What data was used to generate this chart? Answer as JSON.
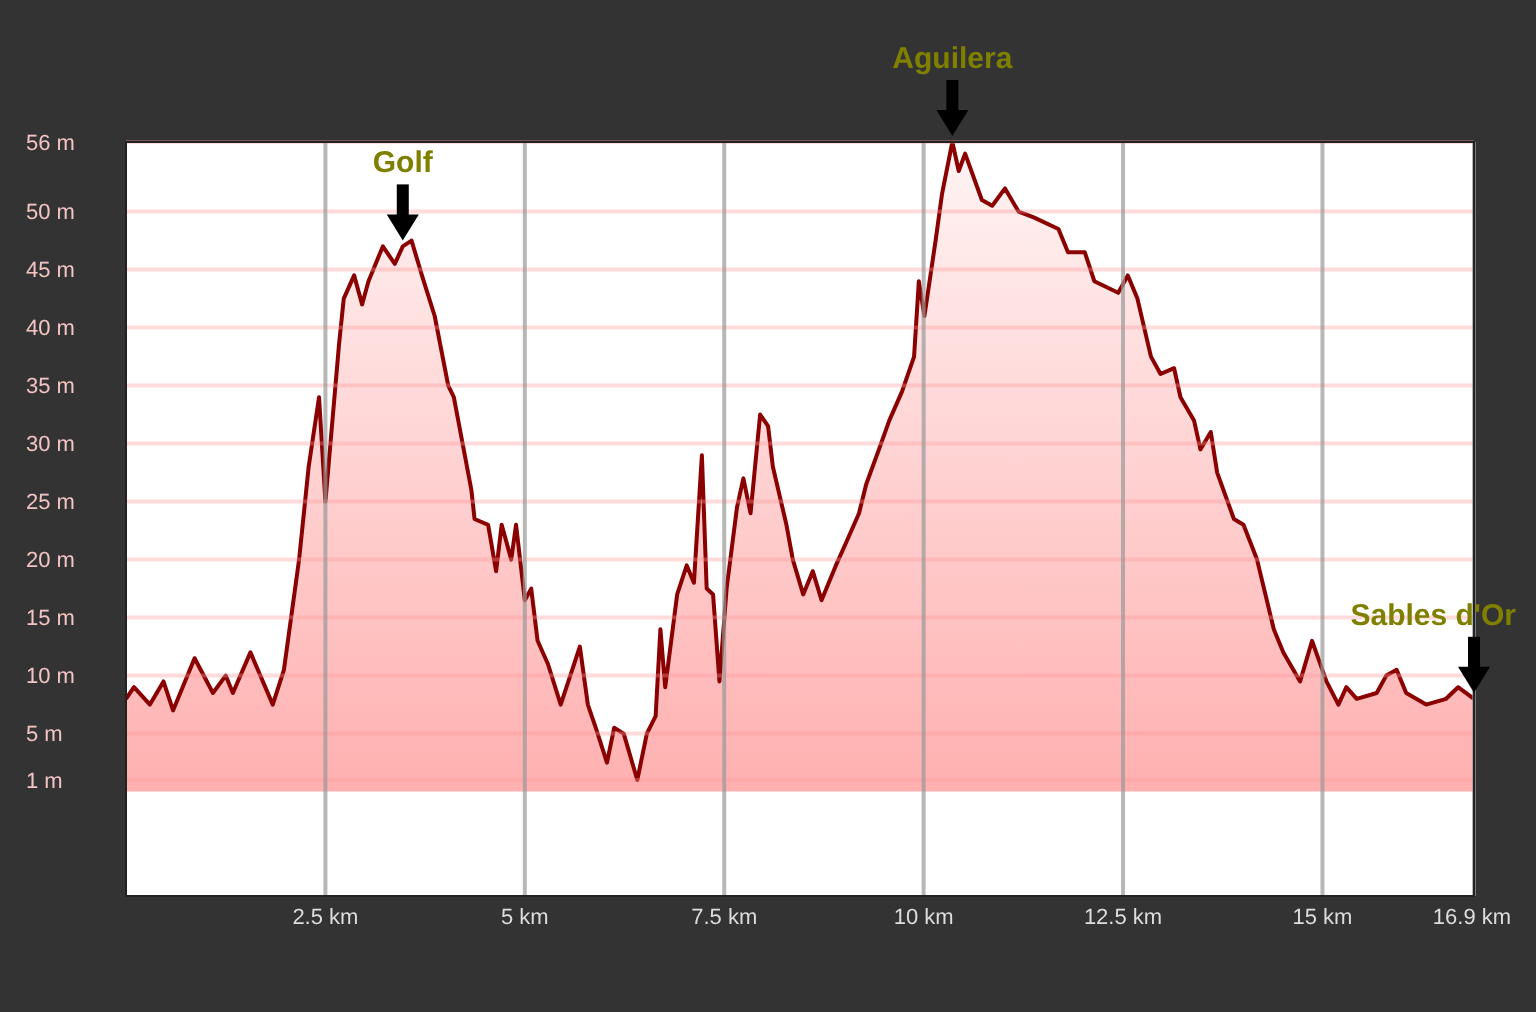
{
  "chart_data": {
    "type": "area",
    "x": [
      0,
      0.1,
      0.3,
      0.47,
      0.59,
      0.86,
      1.09,
      1.25,
      1.34,
      1.56,
      1.84,
      1.98,
      2.17,
      2.29,
      2.42,
      2.5,
      2.67,
      2.73,
      2.86,
      2.96,
      3.04,
      3.22,
      3.37,
      3.47,
      3.58,
      3.71,
      3.87,
      4.04,
      4.11,
      4.33,
      4.37,
      4.54,
      4.64,
      4.71,
      4.83,
      4.89,
      5.0,
      5.08,
      5.16,
      5.29,
      5.45,
      5.69,
      5.79,
      5.89,
      6.03,
      6.12,
      6.24,
      6.41,
      6.53,
      6.64,
      6.7,
      6.76,
      6.91,
      7.03,
      7.12,
      7.22,
      7.28,
      7.36,
      7.44,
      7.53,
      7.66,
      7.74,
      7.83,
      7.95,
      8.05,
      8.11,
      8.28,
      8.36,
      8.49,
      8.61,
      8.72,
      8.9,
      9.03,
      9.19,
      9.28,
      9.44,
      9.57,
      9.73,
      9.88,
      9.94,
      10.01,
      10.15,
      10.23,
      10.36,
      10.44,
      10.52,
      10.73,
      10.86,
      11.02,
      11.19,
      11.38,
      11.69,
      11.81,
      12.02,
      12.14,
      12.44,
      12.56,
      12.68,
      12.85,
      12.97,
      13.14,
      13.22,
      13.39,
      13.47,
      13.6,
      13.68,
      13.89,
      14.01,
      14.18,
      14.39,
      14.51,
      14.72,
      14.87,
      15.05,
      15.2,
      15.3,
      15.43,
      15.68,
      15.8,
      15.93,
      16.05,
      16.3,
      16.55,
      16.7,
      16.9
    ],
    "series": [
      {
        "color": "#8b0000",
        "values": [
          8,
          9,
          7.5,
          9.5,
          7,
          11.5,
          8.5,
          10,
          8.5,
          12,
          7.5,
          10.5,
          20,
          28,
          34,
          25,
          38.5,
          42.5,
          44.5,
          42,
          44,
          47,
          45.5,
          47,
          47.5,
          44.5,
          41,
          35,
          34,
          26,
          23.5,
          23,
          19,
          23,
          20,
          23,
          16.5,
          17.5,
          13,
          11,
          7.5,
          12.5,
          7.5,
          5.5,
          2.5,
          5.5,
          5,
          1,
          5,
          6.5,
          14,
          9,
          17,
          19.5,
          18,
          29,
          17.5,
          17,
          9.5,
          17.5,
          24.5,
          27,
          24,
          32.5,
          31.5,
          28,
          23,
          20,
          17,
          19,
          16.5,
          19.5,
          21.5,
          24,
          26.5,
          29.5,
          32,
          34.5,
          37.5,
          44,
          41,
          47.5,
          51.5,
          56,
          53.5,
          55,
          51,
          50.5,
          52,
          50,
          49.5,
          48.5,
          46.5,
          46.5,
          44,
          43,
          44.5,
          42.5,
          37.5,
          36,
          36.5,
          34,
          32,
          29.5,
          31,
          27.5,
          23.5,
          23,
          20,
          14,
          12,
          9.5,
          13,
          9.5,
          7.5,
          9,
          8,
          8.5,
          10,
          10.5,
          8.5,
          7.5,
          8,
          9,
          8
        ]
      }
    ],
    "xlim": [
      0,
      16.9
    ],
    "ylim": [
      -9,
      56
    ],
    "xticks": [
      {
        "value": 2.5,
        "label": "2.5 km"
      },
      {
        "value": 5,
        "label": "5 km"
      },
      {
        "value": 7.5,
        "label": "7.5 km"
      },
      {
        "value": 10,
        "label": "10 km"
      },
      {
        "value": 12.5,
        "label": "12.5 km"
      },
      {
        "value": 15,
        "label": "15 km"
      },
      {
        "value": 16.9,
        "label": "16.9 km"
      }
    ],
    "yticks": [
      {
        "value": 1,
        "label": "1 m"
      },
      {
        "value": 5,
        "label": "5 m"
      },
      {
        "value": 10,
        "label": "10 m"
      },
      {
        "value": 15,
        "label": "15 m"
      },
      {
        "value": 20,
        "label": "20 m"
      },
      {
        "value": 25,
        "label": "25 m"
      },
      {
        "value": 30,
        "label": "30 m"
      },
      {
        "value": 35,
        "label": "35 m"
      },
      {
        "value": 40,
        "label": "40 m"
      },
      {
        "value": 45,
        "label": "45 m"
      },
      {
        "value": 50,
        "label": "50 m"
      },
      {
        "value": 56,
        "label": "56 m"
      }
    ],
    "grid": true,
    "annotations": [
      {
        "text": "Golf",
        "x": 3.47,
        "y": 47
      },
      {
        "text": "Aguilera",
        "x": 10.36,
        "y": 56
      },
      {
        "text": "Sables d'Or",
        "x": 16.9,
        "y": 8
      }
    ]
  }
}
